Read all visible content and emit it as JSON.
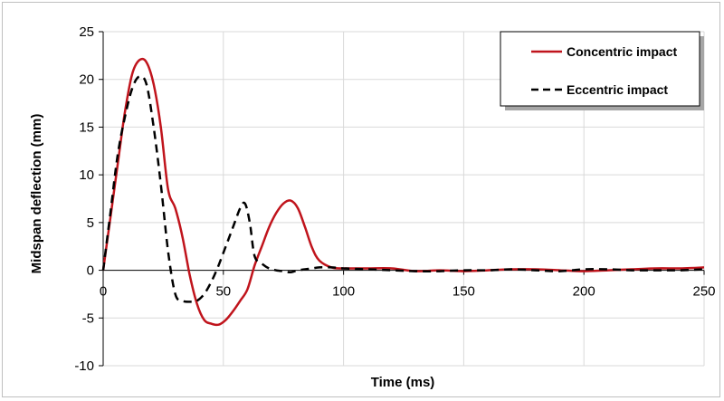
{
  "chart_data": {
    "type": "line",
    "title": "",
    "xlabel": "Time (ms)",
    "ylabel": "Midspan deflection (mm)",
    "xlim": [
      0,
      250
    ],
    "ylim": [
      -10,
      25
    ],
    "x_ticks": [
      0,
      50,
      100,
      150,
      200,
      250
    ],
    "y_ticks": [
      -10,
      -5,
      0,
      5,
      10,
      15,
      20,
      25
    ],
    "grid": true,
    "legend_position": "top-right",
    "series": [
      {
        "name": "Concentric impact",
        "color": "#c0141c",
        "style": "solid",
        "x": [
          0,
          3,
          6,
          9,
          12,
          15,
          18,
          21,
          24,
          27,
          30,
          33,
          36,
          39,
          42,
          45,
          48,
          51,
          54,
          57,
          60,
          63,
          66,
          69,
          72,
          75,
          78,
          81,
          84,
          87,
          90,
          95,
          100,
          110,
          120,
          130,
          140,
          150,
          160,
          170,
          180,
          190,
          200,
          210,
          220,
          230,
          240,
          250
        ],
        "y": [
          0,
          5.5,
          11,
          16.5,
          20.5,
          22,
          21.8,
          19.5,
          15,
          8.5,
          6.5,
          3.5,
          -0.5,
          -3.5,
          -5.2,
          -5.6,
          -5.7,
          -5.2,
          -4.3,
          -3.2,
          -2,
          0.5,
          2.5,
          4.5,
          6,
          7,
          7.3,
          6.5,
          4.5,
          2.3,
          1,
          0.3,
          0.2,
          0.2,
          0.2,
          -0.1,
          0,
          -0.1,
          0,
          0.1,
          0.1,
          0,
          -0.1,
          0,
          0.1,
          0.2,
          0.2,
          0.3
        ]
      },
      {
        "name": "Eccentric impact",
        "color": "#000000",
        "style": "dashed",
        "x": [
          0,
          3,
          6,
          9,
          12,
          15,
          18,
          21,
          24,
          27,
          30,
          33,
          36,
          39,
          42,
          45,
          48,
          51,
          54,
          57,
          59,
          61,
          63,
          66,
          69,
          72,
          75,
          78,
          81,
          84,
          87,
          90,
          95,
          100,
          110,
          120,
          130,
          140,
          150,
          160,
          170,
          180,
          190,
          200,
          210,
          220,
          230,
          240,
          250
        ],
        "y": [
          0,
          6,
          12,
          16,
          19,
          20.3,
          19.5,
          15,
          9,
          2,
          -2.5,
          -3.2,
          -3.3,
          -3.2,
          -2.5,
          -1.2,
          0.5,
          2.5,
          4.5,
          6.5,
          7,
          5,
          1.5,
          0.7,
          0.2,
          0,
          -0.1,
          -0.2,
          0,
          0.1,
          0.2,
          0.3,
          0.3,
          0.2,
          0.1,
          0,
          -0.1,
          -0.1,
          0,
          0,
          0.1,
          0,
          -0.1,
          0.1,
          0.1,
          0,
          0,
          0,
          0.1
        ]
      }
    ]
  }
}
